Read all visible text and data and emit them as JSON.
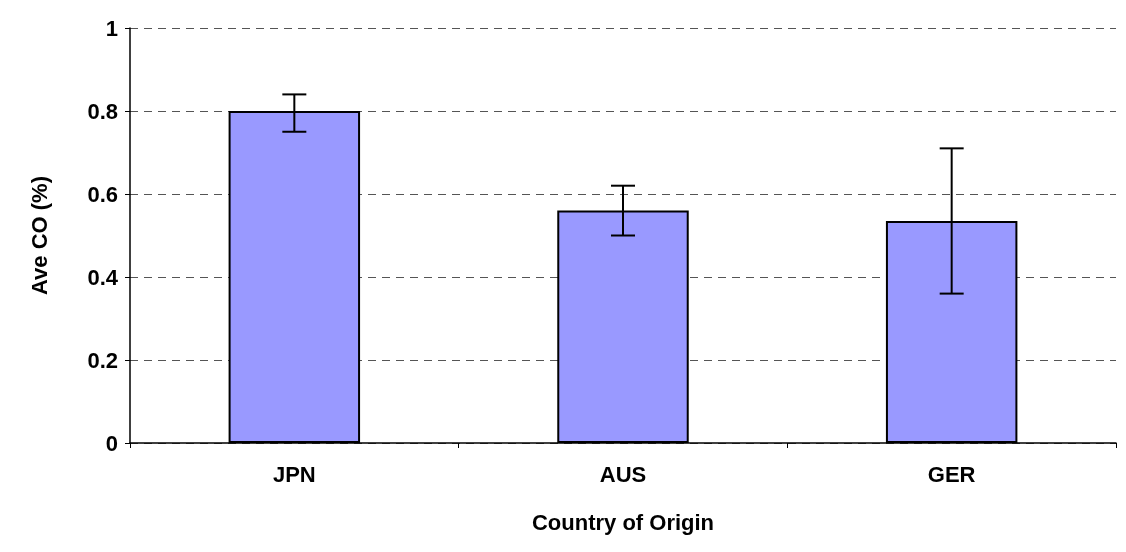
{
  "chart_data": {
    "type": "bar",
    "xlabel": "Country of Origin",
    "ylabel": "Ave CO (%)",
    "categories": [
      "JPN",
      "AUS",
      "GER"
    ],
    "series": [
      {
        "color": "#9999ff",
        "values": [
          0.8,
          0.56,
          0.535
        ],
        "errors": [
          [
            0.75,
            0.84
          ],
          [
            0.5,
            0.62
          ],
          [
            0.36,
            0.71
          ]
        ]
      }
    ],
    "ylim": [
      0,
      1
    ],
    "yticks": [
      0,
      0.2,
      0.4,
      0.6,
      0.8,
      1
    ],
    "grid": "y"
  }
}
